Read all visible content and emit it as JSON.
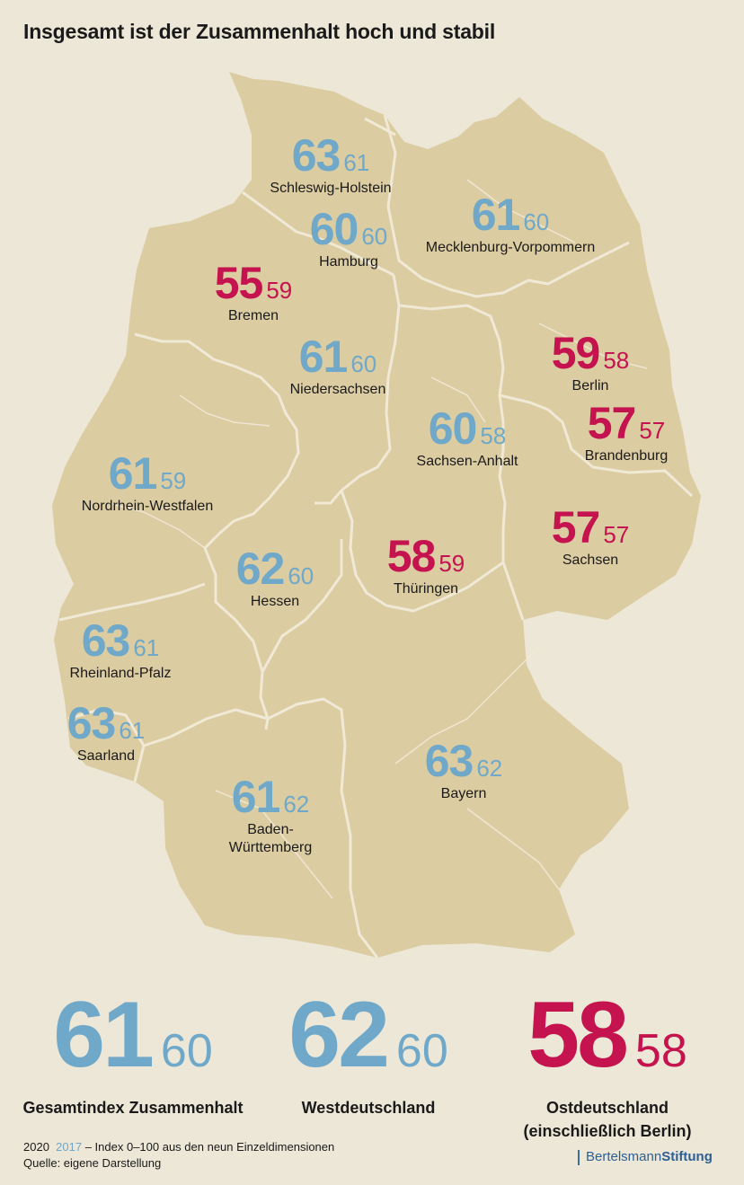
{
  "title": "Insgesamt ist der Zusammenhalt hoch und stabil",
  "colors": {
    "above": "#6fa8c9",
    "below": "#c4134e",
    "land": "#dccca2",
    "border": "#efe9d6",
    "background": "#ece7d6"
  },
  "states": [
    {
      "name": "Schleswig-Holstein",
      "v2020": "63",
      "v2017": "61",
      "color": "blue"
    },
    {
      "name": "Mecklenburg-Vorpommern",
      "v2020": "61",
      "v2017": "60",
      "color": "blue"
    },
    {
      "name": "Hamburg",
      "v2020": "60",
      "v2017": "60",
      "color": "blue"
    },
    {
      "name": "Bremen",
      "v2020": "55",
      "v2017": "59",
      "color": "red"
    },
    {
      "name": "Niedersachsen",
      "v2020": "61",
      "v2017": "60",
      "color": "blue"
    },
    {
      "name": "Berlin",
      "v2020": "59",
      "v2017": "58",
      "color": "red"
    },
    {
      "name": "Brandenburg",
      "v2020": "57",
      "v2017": "57",
      "color": "red"
    },
    {
      "name": "Sachsen-Anhalt",
      "v2020": "60",
      "v2017": "58",
      "color": "blue"
    },
    {
      "name": "Nordrhein-Westfalen",
      "v2020": "61",
      "v2017": "59",
      "color": "blue"
    },
    {
      "name": "Sachsen",
      "v2020": "57",
      "v2017": "57",
      "color": "red"
    },
    {
      "name": "Hessen",
      "v2020": "62",
      "v2017": "60",
      "color": "blue"
    },
    {
      "name": "Thüringen",
      "v2020": "58",
      "v2017": "59",
      "color": "red"
    },
    {
      "name": "Rheinland-Pfalz",
      "v2020": "63",
      "v2017": "61",
      "color": "blue"
    },
    {
      "name": "Saarland",
      "v2020": "63",
      "v2017": "61",
      "color": "blue"
    },
    {
      "name": "Bayern",
      "v2020": "63",
      "v2017": "62",
      "color": "blue"
    },
    {
      "name": "Baden-\nWürttemberg",
      "v2020": "61",
      "v2017": "62",
      "color": "blue"
    }
  ],
  "summary": [
    {
      "label": "Gesamtindex Zusammenhalt",
      "v2020": "61",
      "v2017": "60",
      "color": "blue"
    },
    {
      "label": "Westdeutschland",
      "v2020": "62",
      "v2017": "60",
      "color": "blue"
    },
    {
      "label": "Ostdeutschland\n(einschließlich Berlin)",
      "v2020": "58",
      "v2017": "58",
      "color": "red"
    }
  ],
  "footer": {
    "legend_2020": "2020",
    "legend_2017": "2017",
    "legend_text": "– Index 0–100 aus den neun Einzeldimensionen",
    "source": "Quelle: eigene Darstellung"
  },
  "brand": {
    "part1": "Bertelsmann",
    "part2": "Stiftung"
  }
}
